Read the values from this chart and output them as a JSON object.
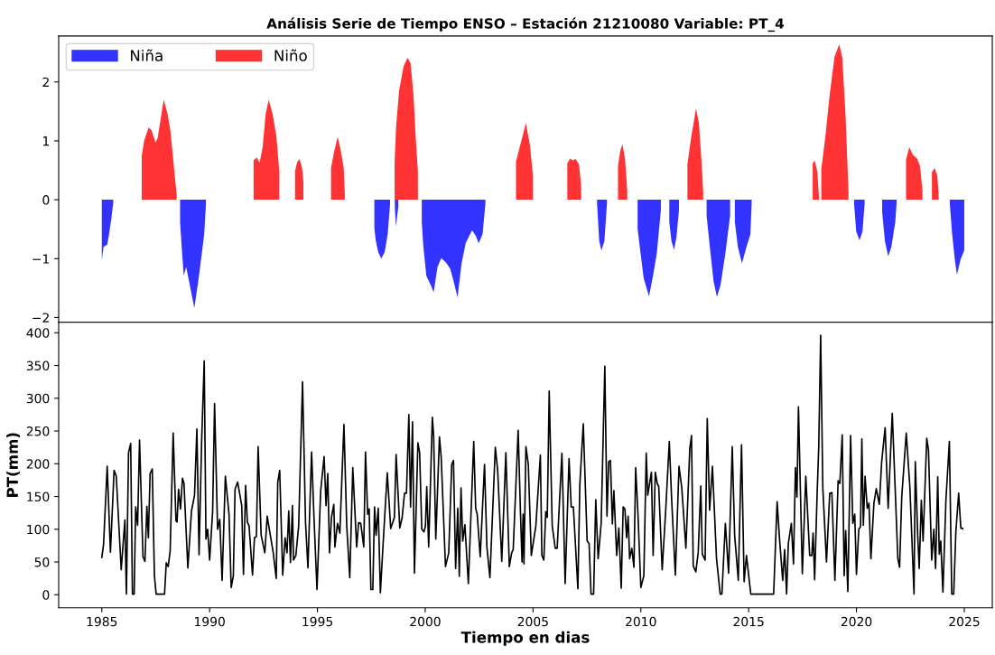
{
  "chart_data": [
    {
      "type": "area",
      "title": "Análisis Serie de Tiempo ENSO – Estación 21210080 Variable: PT_4",
      "legend": "top left",
      "tick_labels": "y",
      "xlim": [
        1983.0,
        2026.3
      ],
      "ylim": [
        -2.08,
        2.78
      ],
      "yticks": [
        -2,
        -1,
        0,
        1,
        2
      ],
      "grid": false,
      "series": [
        {
          "name": "Niña",
          "color": "#3333ff",
          "x": [
            1985.0,
            1985.08,
            1985.17,
            1985.25,
            1985.33,
            1985.45,
            1985.53,
            1985.53,
            1988.63,
            1988.63,
            1988.7,
            1988.8,
            1988.91,
            1989.05,
            1989.29,
            1989.47,
            1989.61,
            1989.75,
            1989.83,
            1989.83,
            1997.64,
            1997.64,
            1997.7,
            1997.82,
            1997.96,
            1998.12,
            1998.26,
            1998.37,
            1998.37,
            1998.59,
            1998.59,
            1998.64,
            1998.75,
            1998.75,
            1999.84,
            1999.84,
            1999.91,
            2000.05,
            2000.26,
            2000.39,
            2000.57,
            2000.74,
            2000.95,
            2001.16,
            2001.32,
            2001.5,
            2001.68,
            2001.88,
            2002.17,
            2002.34,
            2002.48,
            2002.66,
            2002.79,
            2002.79,
            2007.97,
            2007.97,
            2008.07,
            2008.17,
            2008.31,
            2008.43,
            2008.43,
            2009.85,
            2009.85,
            2009.95,
            2010.13,
            2010.38,
            2010.57,
            2010.74,
            2010.93,
            2010.93,
            2011.32,
            2011.32,
            2011.42,
            2011.54,
            2011.65,
            2011.77,
            2011.77,
            2013.05,
            2013.05,
            2013.2,
            2013.37,
            2013.53,
            2013.7,
            2013.92,
            2014.14,
            2014.14,
            2014.36,
            2014.36,
            2014.5,
            2014.69,
            2014.9,
            2015.08,
            2015.14,
            2015.14,
            2019.89,
            2019.89,
            2019.99,
            2020.14,
            2020.28,
            2020.38,
            2020.38,
            2021.19,
            2021.19,
            2021.32,
            2021.47,
            2021.62,
            2021.8,
            2021.86,
            2021.86,
            2024.33,
            2024.33,
            2024.44,
            2024.56,
            2024.66,
            2024.83,
            2025.0
          ],
          "values": [
            -1.03,
            -0.8,
            -0.78,
            -0.76,
            -0.6,
            -0.3,
            -0.05,
            0,
            0,
            -0.38,
            -0.78,
            -1.29,
            -1.14,
            -1.39,
            -1.84,
            -1.39,
            -0.99,
            -0.58,
            -0.07,
            0,
            0,
            -0.48,
            -0.68,
            -0.89,
            -1.0,
            -0.89,
            -0.58,
            -0.07,
            0,
            0,
            -0.12,
            -0.45,
            -0.12,
            0,
            0,
            -0.38,
            -0.78,
            -1.29,
            -1.45,
            -1.57,
            -1.14,
            -0.99,
            -1.06,
            -1.17,
            -1.39,
            -1.66,
            -1.09,
            -0.73,
            -0.52,
            -0.61,
            -0.74,
            -0.58,
            -0.07,
            0,
            0,
            -0.07,
            -0.7,
            -0.86,
            -0.7,
            -0.06,
            0,
            0,
            -0.49,
            -0.8,
            -1.33,
            -1.64,
            -1.28,
            -0.91,
            -0.17,
            0,
            0,
            -0.38,
            -0.7,
            -0.85,
            -0.64,
            -0.17,
            0,
            0,
            -0.27,
            -0.8,
            -1.38,
            -1.65,
            -1.44,
            -0.91,
            -0.27,
            0,
            0,
            -0.38,
            -0.8,
            -1.08,
            -0.8,
            -0.59,
            -0.06,
            0,
            0,
            -0.07,
            -0.54,
            -0.69,
            -0.54,
            -0.06,
            0,
            0,
            -0.2,
            -0.7,
            -0.96,
            -0.8,
            -0.38,
            -0.06,
            0,
            0,
            -0.07,
            -0.59,
            -1.01,
            -1.27,
            -1.01,
            -0.86
          ]
        },
        {
          "name": "Niño",
          "color": "#ff3333",
          "x": [
            1986.85,
            1986.85,
            1986.96,
            1987.17,
            1987.31,
            1987.49,
            1987.59,
            1987.87,
            1988.05,
            1988.19,
            1988.35,
            1988.47,
            1988.47,
            1992.04,
            1992.04,
            1992.18,
            1992.32,
            1992.46,
            1992.6,
            1992.74,
            1992.92,
            1993.09,
            1993.23,
            1993.23,
            1993.96,
            1993.96,
            1994.06,
            1994.17,
            1994.29,
            1994.35,
            1994.35,
            1995.63,
            1995.63,
            1995.76,
            1995.94,
            1996.08,
            1996.22,
            1996.27,
            1996.27,
            1998.58,
            1998.58,
            1998.65,
            1998.79,
            1999.0,
            1999.18,
            1999.32,
            1999.46,
            1999.56,
            1999.66,
            1999.66,
            2004.21,
            2004.21,
            2004.38,
            2004.67,
            2004.85,
            2005.0,
            2005.0,
            2006.59,
            2006.59,
            2006.72,
            2006.84,
            2006.98,
            2007.13,
            2007.23,
            2007.23,
            2008.94,
            2008.94,
            2009.05,
            2009.15,
            2009.27,
            2009.37,
            2009.37,
            2012.16,
            2012.16,
            2012.33,
            2012.56,
            2012.69,
            2012.81,
            2012.89,
            2012.89,
            2017.97,
            2017.97,
            2018.07,
            2018.19,
            2018.26,
            2018.26,
            2018.37,
            2018.37,
            2018.55,
            2018.76,
            2018.98,
            2019.2,
            2019.34,
            2019.49,
            2019.63,
            2019.63,
            2022.3,
            2022.3,
            2022.45,
            2022.62,
            2022.81,
            2022.95,
            2023.06,
            2023.06,
            2023.5,
            2023.5,
            2023.63,
            2023.75,
            2023.81,
            2023.81
          ],
          "values": [
            0,
            0.74,
            1.0,
            1.23,
            1.18,
            0.97,
            1.05,
            1.7,
            1.46,
            1.15,
            0.54,
            0.1,
            0,
            0,
            0.67,
            0.72,
            0.63,
            0.9,
            1.46,
            1.7,
            1.46,
            1.1,
            0.49,
            0,
            0,
            0.49,
            0.64,
            0.69,
            0.54,
            0.3,
            0,
            0,
            0.54,
            0.79,
            1.07,
            0.84,
            0.54,
            0.1,
            0,
            0,
            0.64,
            1.25,
            1.86,
            2.27,
            2.41,
            2.32,
            1.76,
            1.05,
            0.49,
            0,
            0,
            0.65,
            0.89,
            1.3,
            0.94,
            0.41,
            0,
            0,
            0.62,
            0.7,
            0.67,
            0.69,
            0.6,
            0.25,
            0,
            0,
            0.57,
            0.84,
            0.94,
            0.68,
            0.15,
            0,
            0,
            0.6,
            1.05,
            1.55,
            1.31,
            0.68,
            0.15,
            0,
            0,
            0.62,
            0.66,
            0.47,
            0.04,
            0,
            0,
            0.52,
            1.05,
            1.79,
            2.42,
            2.64,
            2.42,
            1.47,
            0.15,
            0,
            0,
            0.68,
            0.89,
            0.76,
            0.7,
            0.57,
            0.15,
            0,
            0,
            0.47,
            0.54,
            0.41,
            0.1,
            0
          ]
        }
      ]
    },
    {
      "type": "line",
      "xlabel": "Tiempo en dias",
      "ylabel": "PT(mm)",
      "legend": false,
      "grid": false,
      "marker": "none",
      "line_style": "solid",
      "xlim": [
        1983.0,
        2026.3
      ],
      "ylim": [
        -20,
        416
      ],
      "xticks": [
        1985,
        1990,
        1995,
        2000,
        2005,
        2010,
        2015,
        2020,
        2025
      ],
      "yticks": [
        0,
        50,
        100,
        150,
        200,
        250,
        300,
        350,
        400
      ],
      "series": [
        {
          "color": "#000000",
          "x": [
            1985.0,
            1985.08,
            1985.25,
            1985.4,
            1985.57,
            1985.67,
            1985.9,
            1986.07,
            1986.14,
            1986.24,
            1986.34,
            1986.42,
            1986.5,
            1986.57,
            1986.66,
            1986.75,
            1986.91,
            1987.0,
            1987.09,
            1987.16,
            1987.24,
            1987.34,
            1987.44,
            1987.52,
            1987.91,
            1987.99,
            1988.08,
            1988.17,
            1988.31,
            1988.44,
            1988.49,
            1988.56,
            1988.65,
            1988.74,
            1988.81,
            1988.99,
            1989.16,
            1989.3,
            1989.41,
            1989.51,
            1989.63,
            1989.75,
            1989.83,
            1989.91,
            1990.0,
            1990.14,
            1990.23,
            1990.37,
            1990.47,
            1990.58,
            1990.73,
            1990.9,
            1991.0,
            1991.1,
            1991.18,
            1991.3,
            1991.49,
            1991.57,
            1991.67,
            1991.75,
            1991.83,
            1991.99,
            1992.08,
            1992.17,
            1992.25,
            1992.39,
            1992.56,
            1992.67,
            1992.95,
            1993.09,
            1993.16,
            1993.25,
            1993.39,
            1993.5,
            1993.59,
            1993.67,
            1993.75,
            1993.84,
            1993.89,
            1994.0,
            1994.13,
            1994.31,
            1994.45,
            1994.56,
            1994.73,
            1994.84,
            1994.98,
            1995.15,
            1995.31,
            1995.4,
            1995.48,
            1995.56,
            1995.65,
            1995.76,
            1995.81,
            1995.93,
            1996.04,
            1996.23,
            1996.36,
            1996.5,
            1996.64,
            1996.82,
            1996.91,
            1997.01,
            1997.15,
            1997.23,
            1997.33,
            1997.4,
            1997.48,
            1997.57,
            1997.65,
            1997.72,
            1997.82,
            1997.92,
            1998.07,
            1998.24,
            1998.4,
            1998.57,
            1998.65,
            1998.82,
            1998.93,
            1999.04,
            1999.13,
            1999.24,
            1999.32,
            1999.41,
            1999.5,
            1999.66,
            1999.74,
            1999.84,
            1999.94,
            2000.01,
            2000.07,
            2000.16,
            2000.33,
            2000.39,
            2000.49,
            2000.66,
            2000.74,
            2000.94,
            2001.09,
            2001.23,
            2001.31,
            2001.41,
            2001.51,
            2001.58,
            2001.66,
            2001.74,
            2001.84,
            2002.0,
            2002.25,
            2002.34,
            2002.41,
            2002.55,
            2002.75,
            2002.86,
            2003.0,
            2003.25,
            2003.36,
            2003.55,
            2003.74,
            2003.9,
            2004.01,
            2004.08,
            2004.31,
            2004.42,
            2004.49,
            2004.54,
            2004.58,
            2004.67,
            2004.78,
            2004.92,
            2005.13,
            2005.34,
            2005.41,
            2005.5,
            2005.59,
            2005.66,
            2005.75,
            2005.89,
            2006.03,
            2006.12,
            2006.34,
            2006.49,
            2006.67,
            2006.77,
            2006.87,
            2007.08,
            2007.17,
            2007.33,
            2007.51,
            2007.6,
            2007.69,
            2007.81,
            2007.91,
            2008.02,
            2008.16,
            2008.33,
            2008.43,
            2008.51,
            2008.59,
            2008.68,
            2008.75,
            2008.88,
            2008.98,
            2009.09,
            2009.18,
            2009.26,
            2009.34,
            2009.41,
            2009.48,
            2009.58,
            2009.68,
            2009.76,
            2009.87,
            2010.0,
            2010.14,
            2010.25,
            2010.32,
            2010.49,
            2010.57,
            2010.67,
            2010.76,
            2010.83,
            2010.99,
            2011.15,
            2011.32,
            2011.43,
            2011.6,
            2011.77,
            2011.9,
            2012.09,
            2012.27,
            2012.35,
            2012.43,
            2012.55,
            2012.66,
            2012.78,
            2012.85,
            2012.98,
            2013.08,
            2013.19,
            2013.32,
            2013.51,
            2013.68,
            2013.76,
            2013.92,
            2014.07,
            2014.24,
            2014.35,
            2014.52,
            2014.67,
            2014.79,
            2014.9,
            2015.1,
            2016.16,
            2016.32,
            2016.44,
            2016.58,
            2016.67,
            2016.76,
            2016.84,
            2016.98,
            2017.08,
            2017.17,
            2017.24,
            2017.31,
            2017.49,
            2017.65,
            2017.83,
            2017.93,
            2017.99,
            2018.06,
            2018.18,
            2018.25,
            2018.34,
            2018.44,
            2018.61,
            2018.76,
            2018.86,
            2019.0,
            2019.15,
            2019.23,
            2019.34,
            2019.43,
            2019.5,
            2019.6,
            2019.73,
            2019.83,
            2019.92,
            2020.0,
            2020.11,
            2020.19,
            2020.25,
            2020.32,
            2020.4,
            2020.5,
            2020.58,
            2020.67,
            2020.81,
            2020.92,
            2021.06,
            2021.17,
            2021.33,
            2021.47,
            2021.66,
            2021.79,
            2021.92,
            2022.0,
            2022.1,
            2022.31,
            2022.48,
            2022.67,
            2022.73,
            2022.84,
            2022.91,
            2023.01,
            2023.09,
            2023.26,
            2023.34,
            2023.49,
            2023.59,
            2023.67,
            2023.77,
            2023.84,
            2023.91,
            2024.01,
            2024.15,
            2024.31,
            2024.42,
            2024.51,
            2024.61,
            2024.74,
            2024.84,
            2024.93
          ],
          "values": [
            57,
            76,
            196,
            65,
            190,
            181,
            38,
            114,
            1,
            217,
            231,
            1,
            1,
            134,
            106,
            236,
            58,
            51,
            135,
            87,
            185,
            192,
            29,
            1,
            1,
            49,
            43,
            67,
            247,
            113,
            111,
            161,
            131,
            178,
            170,
            41,
            128,
            152,
            253,
            61,
            234,
            357,
            85,
            100,
            53,
            127,
            292,
            100,
            115,
            22,
            181,
            123,
            11,
            29,
            161,
            172,
            136,
            31,
            167,
            111,
            105,
            30,
            87,
            89,
            226,
            91,
            64,
            120,
            64,
            25,
            172,
            190,
            30,
            87,
            64,
            128,
            49,
            136,
            53,
            60,
            105,
            325,
            109,
            41,
            218,
            118,
            8,
            158,
            211,
            136,
            185,
            64,
            118,
            138,
            73,
            109,
            94,
            260,
            105,
            26,
            194,
            73,
            110,
            109,
            73,
            218,
            123,
            131,
            8,
            8,
            134,
            91,
            132,
            3,
            91,
            186,
            101,
            118,
            214,
            102,
            118,
            155,
            155,
            275,
            134,
            264,
            33,
            232,
            217,
            100,
            96,
            105,
            165,
            73,
            271,
            243,
            85,
            241,
            210,
            43,
            64,
            199,
            205,
            40,
            132,
            28,
            163,
            82,
            107,
            17,
            234,
            132,
            123,
            58,
            199,
            73,
            26,
            225,
            190,
            51,
            217,
            43,
            64,
            69,
            251,
            123,
            50,
            123,
            47,
            226,
            199,
            60,
            105,
            213,
            60,
            53,
            127,
            118,
            311,
            105,
            71,
            71,
            216,
            17,
            208,
            134,
            134,
            9,
            168,
            261,
            82,
            78,
            1,
            1,
            145,
            55,
            109,
            349,
            120,
            203,
            205,
            108,
            159,
            60,
            102,
            10,
            134,
            131,
            87,
            120,
            55,
            71,
            42,
            194,
            120,
            11,
            29,
            216,
            152,
            187,
            60,
            187,
            170,
            165,
            38,
            127,
            234,
            145,
            30,
            196,
            163,
            71,
            223,
            243,
            44,
            35,
            64,
            166,
            62,
            53,
            269,
            129,
            196,
            55,
            1,
            1,
            109,
            33,
            226,
            91,
            22,
            229,
            20,
            60,
            1,
            1,
            142,
            82,
            22,
            69,
            1,
            78,
            109,
            47,
            194,
            149,
            287,
            32,
            181,
            60,
            60,
            94,
            23,
            158,
            225,
            396,
            163,
            50,
            155,
            156,
            22,
            174,
            170,
            244,
            29,
            98,
            5,
            243,
            109,
            123,
            31,
            100,
            104,
            238,
            106,
            181,
            132,
            140,
            55,
            140,
            162,
            138,
            203,
            255,
            132,
            277,
            167,
            55,
            42,
            149,
            247,
            163,
            1,
            203,
            91,
            40,
            144,
            82,
            239,
            221,
            53,
            100,
            40,
            180,
            62,
            82,
            4,
            145,
            234,
            1,
            1,
            96,
            155,
            102,
            101
          ]
        }
      ]
    }
  ]
}
